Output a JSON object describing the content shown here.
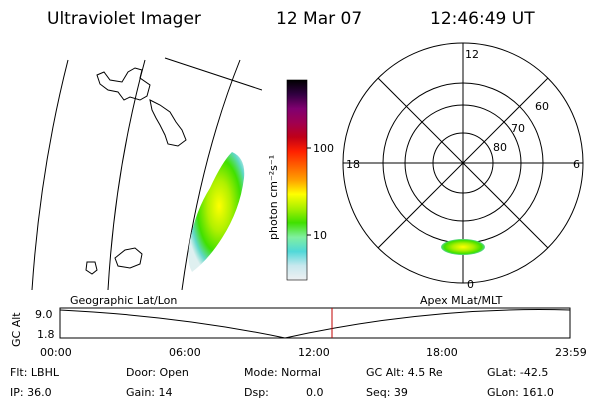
{
  "header": {
    "instrument": "Ultraviolet Imager",
    "date": "12 Mar 07",
    "time": "12:46:49 UT"
  },
  "colorbar": {
    "unit_label": "photon cm⁻²s⁻¹",
    "tick_100": "100",
    "tick_10": "10",
    "palette": [
      "#eef0f2",
      "#c8e8ee",
      "#50d8d8",
      "#80f0a0",
      "#40e000",
      "#a8f000",
      "#ffff00",
      "#ffa000",
      "#ff6000",
      "#ff2000",
      "#c00018",
      "#a00050",
      "#800070",
      "#300040",
      "#000000"
    ]
  },
  "polar": {
    "mlt_top": "12",
    "mlt_left": "18",
    "mlt_right": "6",
    "mlt_bottom": "0",
    "lat_60": "60",
    "lat_70": "70",
    "lat_80": "80"
  },
  "altitude_panel": {
    "geo_label": "Geographic Lat/Lon",
    "apex_label": "Apex MLat/MLT",
    "axis_label": "GC Alt",
    "y_max": "9.0",
    "y_min": "1.8",
    "x_ticks": [
      "00:00",
      "06:00",
      "12:00",
      "18:00",
      "23:59"
    ],
    "current_time_marker_color": "#c00000"
  },
  "info": {
    "filter": "Flt: LBHL",
    "ip": "IP: 36.0",
    "door": "Door: Open",
    "gain": "Gain: 14",
    "mode": "Mode: Normal",
    "dsp": "Dsp:",
    "dsp_value": "0.0",
    "gc_alt": "GC Alt: 4.5 Re",
    "seq": "Seq: 39",
    "glat": "GLat: -42.5",
    "glon": "GLon: 161.0"
  }
}
